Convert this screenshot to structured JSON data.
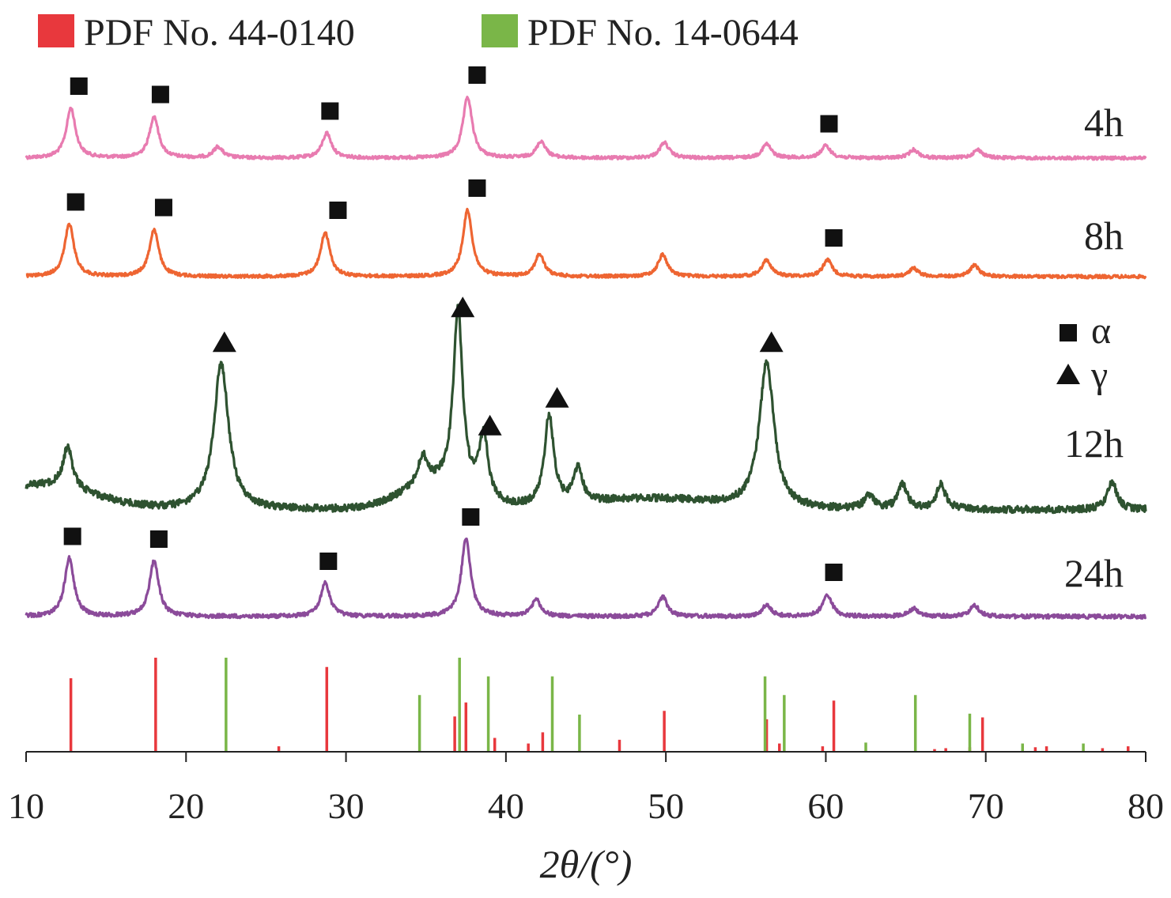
{
  "chart_data": {
    "type": "line",
    "title": "",
    "xlabel": "2θ/(°)",
    "ylabel": "",
    "xlim": [
      10,
      80
    ],
    "xticks": [
      "10",
      "20",
      "30",
      "40",
      "50",
      "60",
      "70",
      "80"
    ],
    "grid": false,
    "legend": {
      "placement": "top-left",
      "entries": [
        {
          "name": "PDF No. 44-0140",
          "color": "#e8383d"
        },
        {
          "name": "PDF No. 14-0644",
          "color": "#7ab648"
        }
      ]
    },
    "phase_legend": [
      {
        "symbol": "square",
        "name": "α"
      },
      {
        "symbol": "triangle",
        "name": "γ"
      }
    ],
    "series": [
      {
        "name": "4h",
        "color": "#e87bb0",
        "baseline": 0.0,
        "peaks": [
          {
            "x": 12.8,
            "h": 0.9
          },
          {
            "x": 18.0,
            "h": 0.75
          },
          {
            "x": 22.0,
            "h": 0.2
          },
          {
            "x": 28.8,
            "h": 0.45
          },
          {
            "x": 37.6,
            "h": 1.1
          },
          {
            "x": 42.2,
            "h": 0.3
          },
          {
            "x": 49.9,
            "h": 0.28
          },
          {
            "x": 56.3,
            "h": 0.25
          },
          {
            "x": 60.0,
            "h": 0.22
          },
          {
            "x": 65.5,
            "h": 0.15
          },
          {
            "x": 69.5,
            "h": 0.15
          }
        ],
        "markers": [
          {
            "x": 13.3,
            "symbol": "square"
          },
          {
            "x": 18.4,
            "symbol": "square"
          },
          {
            "x": 29.0,
            "symbol": "square"
          },
          {
            "x": 38.2,
            "symbol": "square"
          },
          {
            "x": 60.2,
            "symbol": "square"
          }
        ]
      },
      {
        "name": "8h",
        "color": "#ee6532",
        "baseline": 0.0,
        "peaks": [
          {
            "x": 12.7,
            "h": 0.95
          },
          {
            "x": 18.0,
            "h": 0.85
          },
          {
            "x": 28.7,
            "h": 0.8
          },
          {
            "x": 37.6,
            "h": 1.2
          },
          {
            "x": 42.1,
            "h": 0.4
          },
          {
            "x": 49.8,
            "h": 0.4
          },
          {
            "x": 56.3,
            "h": 0.3
          },
          {
            "x": 60.1,
            "h": 0.3
          },
          {
            "x": 65.5,
            "h": 0.15
          },
          {
            "x": 69.3,
            "h": 0.2
          }
        ],
        "markers": [
          {
            "x": 13.1,
            "symbol": "square"
          },
          {
            "x": 18.6,
            "symbol": "square"
          },
          {
            "x": 29.5,
            "symbol": "square"
          },
          {
            "x": 38.2,
            "symbol": "square"
          },
          {
            "x": 60.5,
            "symbol": "square"
          }
        ]
      },
      {
        "name": "12h",
        "color": "#2e5230",
        "baseline": 0.0,
        "peaks": [
          {
            "x": 12.6,
            "h": 0.6
          },
          {
            "x": 22.2,
            "h": 2.1
          },
          {
            "x": 34.8,
            "h": 0.4
          },
          {
            "x": 37.0,
            "h": 2.6
          },
          {
            "x": 38.6,
            "h": 0.9
          },
          {
            "x": 42.7,
            "h": 1.3
          },
          {
            "x": 44.5,
            "h": 0.5
          },
          {
            "x": 56.3,
            "h": 2.1
          },
          {
            "x": 62.7,
            "h": 0.2
          },
          {
            "x": 64.8,
            "h": 0.35
          },
          {
            "x": 67.2,
            "h": 0.35
          },
          {
            "x": 77.9,
            "h": 0.4
          }
        ],
        "markers": [
          {
            "x": 22.4,
            "symbol": "triangle"
          },
          {
            "x": 37.3,
            "symbol": "triangle"
          },
          {
            "x": 39.0,
            "symbol": "triangle"
          },
          {
            "x": 43.2,
            "symbol": "triangle"
          },
          {
            "x": 56.6,
            "symbol": "triangle"
          }
        ]
      },
      {
        "name": "24h",
        "color": "#8b4b9a",
        "baseline": 0.0,
        "peaks": [
          {
            "x": 12.7,
            "h": 1.05
          },
          {
            "x": 18.0,
            "h": 1.0
          },
          {
            "x": 28.7,
            "h": 0.6
          },
          {
            "x": 37.5,
            "h": 1.4
          },
          {
            "x": 41.9,
            "h": 0.3
          },
          {
            "x": 49.8,
            "h": 0.35
          },
          {
            "x": 56.3,
            "h": 0.2
          },
          {
            "x": 60.1,
            "h": 0.4
          },
          {
            "x": 65.5,
            "h": 0.15
          },
          {
            "x": 69.3,
            "h": 0.2
          }
        ],
        "markers": [
          {
            "x": 12.9,
            "symbol": "square"
          },
          {
            "x": 18.3,
            "symbol": "square"
          },
          {
            "x": 28.9,
            "symbol": "square"
          },
          {
            "x": 37.8,
            "symbol": "square"
          },
          {
            "x": 60.5,
            "symbol": "square"
          }
        ]
      }
    ],
    "reference_pdf_44_0140": {
      "name": "PDF No. 44-0140",
      "color": "#e8383d",
      "lines": [
        {
          "x": 12.8,
          "i": 0.78
        },
        {
          "x": 18.1,
          "i": 1.0
        },
        {
          "x": 25.8,
          "i": 0.05
        },
        {
          "x": 28.8,
          "i": 0.9
        },
        {
          "x": 36.8,
          "i": 0.37
        },
        {
          "x": 37.5,
          "i": 0.52
        },
        {
          "x": 39.3,
          "i": 0.14
        },
        {
          "x": 41.4,
          "i": 0.08
        },
        {
          "x": 42.3,
          "i": 0.2
        },
        {
          "x": 47.1,
          "i": 0.12
        },
        {
          "x": 49.9,
          "i": 0.43
        },
        {
          "x": 56.3,
          "i": 0.34
        },
        {
          "x": 57.1,
          "i": 0.08
        },
        {
          "x": 59.8,
          "i": 0.05
        },
        {
          "x": 60.5,
          "i": 0.54
        },
        {
          "x": 66.8,
          "i": 0.02
        },
        {
          "x": 67.5,
          "i": 0.03
        },
        {
          "x": 69.0,
          "i": 0.04
        },
        {
          "x": 69.8,
          "i": 0.36
        },
        {
          "x": 73.1,
          "i": 0.04
        },
        {
          "x": 73.8,
          "i": 0.05
        },
        {
          "x": 77.3,
          "i": 0.03
        },
        {
          "x": 78.9,
          "i": 0.05
        }
      ]
    },
    "reference_pdf_14_0644": {
      "name": "PDF No. 14-0644",
      "color": "#7ab648",
      "lines": [
        {
          "x": 22.5,
          "i": 1.0
        },
        {
          "x": 34.6,
          "i": 0.6
        },
        {
          "x": 37.1,
          "i": 1.0
        },
        {
          "x": 38.9,
          "i": 0.8
        },
        {
          "x": 42.9,
          "i": 0.8
        },
        {
          "x": 44.6,
          "i": 0.39
        },
        {
          "x": 56.2,
          "i": 0.8
        },
        {
          "x": 57.4,
          "i": 0.6
        },
        {
          "x": 62.5,
          "i": 0.09
        },
        {
          "x": 65.6,
          "i": 0.6
        },
        {
          "x": 69.0,
          "i": 0.4
        },
        {
          "x": 72.3,
          "i": 0.08
        },
        {
          "x": 76.1,
          "i": 0.08
        }
      ]
    }
  }
}
